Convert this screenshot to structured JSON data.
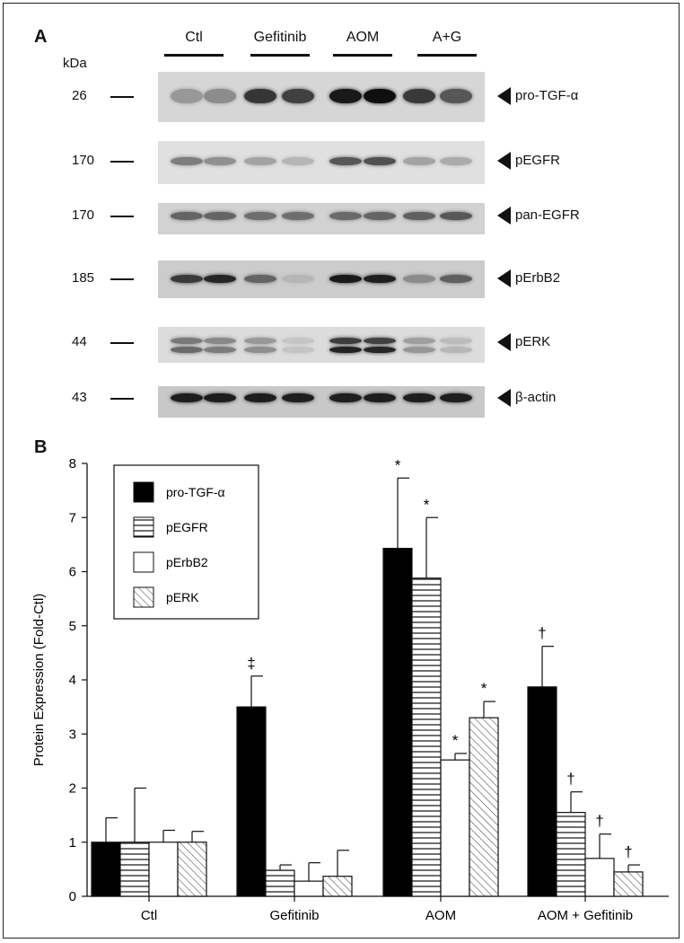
{
  "panel_a": {
    "letter": "A",
    "unit": "kDa",
    "groups": [
      "Ctl",
      "Gefitinib",
      "AOM",
      "A+G"
    ],
    "blots": [
      {
        "kda": "26",
        "label": "pro-TGF-α",
        "intensity": [
          0.28,
          0.34,
          0.8,
          0.74,
          0.95,
          1.0,
          0.78,
          0.62
        ],
        "bg": "#d6d6d6"
      },
      {
        "kda": "170",
        "label": "pEGFR",
        "intensity": [
          0.42,
          0.32,
          0.22,
          0.12,
          0.62,
          0.66,
          0.22,
          0.18
        ],
        "bg": "#e0e0e0"
      },
      {
        "kda": "170",
        "label": "pan-EGFR",
        "intensity": [
          0.55,
          0.55,
          0.5,
          0.5,
          0.52,
          0.55,
          0.58,
          0.62
        ],
        "bg": "#d2d2d2"
      },
      {
        "kda": "185",
        "label": "pErbB2",
        "intensity": [
          0.78,
          0.88,
          0.55,
          0.12,
          0.95,
          0.92,
          0.35,
          0.58
        ],
        "bg": "#cccccc"
      },
      {
        "kda": "44",
        "label": "pERK",
        "intensity": [
          0.55,
          0.45,
          0.35,
          0.05,
          0.95,
          0.92,
          0.3,
          0.12
        ],
        "bg": "#dcdcdc"
      },
      {
        "kda": "43",
        "label": "β-actin",
        "intensity": [
          0.92,
          0.92,
          0.92,
          0.92,
          0.92,
          0.92,
          0.92,
          0.92
        ],
        "bg": "#c8c8c8"
      }
    ]
  },
  "panel_b": {
    "letter": "B"
  },
  "chart_data": {
    "type": "bar",
    "title": "",
    "ylabel": "Protein Expression (Fold-Ctl)",
    "xlabel": "",
    "ylim": [
      0,
      8
    ],
    "yticks": [
      0,
      1,
      2,
      3,
      4,
      5,
      6,
      7,
      8
    ],
    "categories": [
      "Ctl",
      "Gefitinib",
      "AOM",
      "AOM + Gefitinib"
    ],
    "legend_position": "top-left",
    "series": [
      {
        "name": "pro-TGF-α",
        "pattern": "solid",
        "values": [
          1.0,
          3.5,
          6.43,
          3.87
        ],
        "errors": [
          0.45,
          0.57,
          1.3,
          0.75
        ],
        "marks": [
          "",
          "‡",
          "*",
          "†"
        ]
      },
      {
        "name": "pEGFR",
        "pattern": "hlines",
        "values": [
          1.0,
          0.48,
          5.88,
          1.55
        ],
        "errors": [
          1.0,
          0.1,
          1.12,
          0.38
        ],
        "marks": [
          "",
          "",
          "*",
          "†"
        ]
      },
      {
        "name": "pErbB2",
        "pattern": "open",
        "values": [
          1.0,
          0.28,
          2.52,
          0.7
        ],
        "errors": [
          0.22,
          0.34,
          0.12,
          0.45
        ],
        "marks": [
          "",
          "",
          "*",
          "†"
        ]
      },
      {
        "name": "pERK",
        "pattern": "diag",
        "values": [
          1.0,
          0.37,
          3.3,
          0.45
        ],
        "errors": [
          0.2,
          0.48,
          0.3,
          0.13
        ],
        "marks": [
          "",
          "",
          "*",
          "†"
        ]
      }
    ]
  }
}
